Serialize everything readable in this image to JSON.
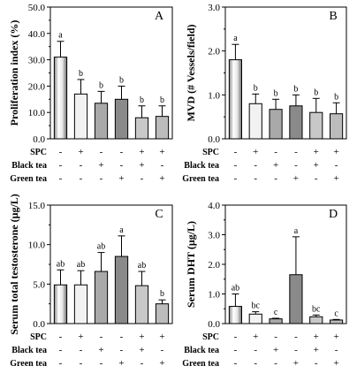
{
  "chart_data": [
    {
      "type": "bar",
      "panel": "A",
      "ylabel": "Proliferation index (%)",
      "ylim": [
        0,
        50
      ],
      "yticks": [
        "0.0",
        "10.0",
        "20.0",
        "30.0",
        "40.0",
        "50.0"
      ],
      "values": [
        31,
        17,
        13.5,
        15,
        8,
        8.5
      ],
      "errors": [
        6,
        5.5,
        4.5,
        5,
        4.5,
        4
      ],
      "letters": [
        "a",
        "b",
        "b",
        "b",
        "b",
        "b"
      ],
      "treatments": [
        {
          "name": "SPC",
          "signs": [
            "-",
            "+",
            "-",
            "-",
            "+",
            "+"
          ]
        },
        {
          "name": "Black tea",
          "signs": [
            "-",
            "-",
            "+",
            "-",
            "+",
            "-"
          ]
        },
        {
          "name": "Green tea",
          "signs": [
            "-",
            "-",
            "-",
            "+",
            "-",
            "+"
          ]
        }
      ]
    },
    {
      "type": "bar",
      "panel": "B",
      "ylabel": "MVD (# Vessels/field)",
      "ylim": [
        0,
        3
      ],
      "yticks": [
        "0.0",
        "1.0",
        "2.0",
        "3.0"
      ],
      "values": [
        1.8,
        0.8,
        0.67,
        0.75,
        0.6,
        0.57
      ],
      "errors": [
        0.35,
        0.22,
        0.23,
        0.25,
        0.32,
        0.25
      ],
      "letters": [
        "a",
        "b",
        "b",
        "b",
        "b",
        "b"
      ],
      "treatments": [
        {
          "name": "SPC",
          "signs": [
            "-",
            "+",
            "-",
            "-",
            "+",
            "+"
          ]
        },
        {
          "name": "Black tea",
          "signs": [
            "-",
            "-",
            "+",
            "-",
            "+",
            "-"
          ]
        },
        {
          "name": "Green tea",
          "signs": [
            "-",
            "-",
            "-",
            "+",
            "-",
            "+"
          ]
        }
      ]
    },
    {
      "type": "bar",
      "panel": "C",
      "ylabel": "Serum total testosterone (μg/L)",
      "ylim": [
        0,
        15
      ],
      "yticks": [
        "0.0",
        "5.0",
        "10.0",
        "15.0"
      ],
      "values": [
        4.9,
        4.9,
        6.6,
        8.5,
        4.8,
        2.5
      ],
      "errors": [
        1.9,
        1.8,
        2.4,
        2.6,
        1.8,
        0.5
      ],
      "letters": [
        "ab",
        "ab",
        "ab",
        "a",
        "ab",
        "b"
      ],
      "treatments": [
        {
          "name": "SPC",
          "signs": [
            "-",
            "+",
            "-",
            "-",
            "+",
            "+"
          ]
        },
        {
          "name": "Black tea",
          "signs": [
            "-",
            "-",
            "+",
            "-",
            "+",
            "-"
          ]
        },
        {
          "name": "Green tea",
          "signs": [
            "-",
            "-",
            "-",
            "+",
            "-",
            "+"
          ]
        }
      ]
    },
    {
      "type": "bar",
      "panel": "D",
      "ylabel": "Serum DHT (μg/L)",
      "ylim": [
        0,
        4
      ],
      "yticks": [
        "0.0",
        "1.0",
        "2.0",
        "3.0",
        "4.0"
      ],
      "values": [
        0.58,
        0.32,
        0.16,
        1.65,
        0.23,
        0.12
      ],
      "errors": [
        0.42,
        0.08,
        0.02,
        1.28,
        0.06,
        0.02
      ],
      "letters": [
        "ab",
        "bc",
        "c",
        "a",
        "bc",
        "c"
      ],
      "treatments": [
        {
          "name": "SPC",
          "signs": [
            "-",
            "+",
            "-",
            "-",
            "+",
            "+"
          ]
        },
        {
          "name": "Black tea",
          "signs": [
            "-",
            "-",
            "+",
            "-",
            "+",
            "-"
          ]
        },
        {
          "name": "Green tea",
          "signs": [
            "-",
            "-",
            "-",
            "+",
            "-",
            "+"
          ]
        }
      ]
    }
  ],
  "bar_colors": [
    "cylinder",
    "#f2f2f2",
    "#a9a9a9",
    "#8a8a8a",
    "#c8c8c8",
    "#bcbcbc"
  ]
}
